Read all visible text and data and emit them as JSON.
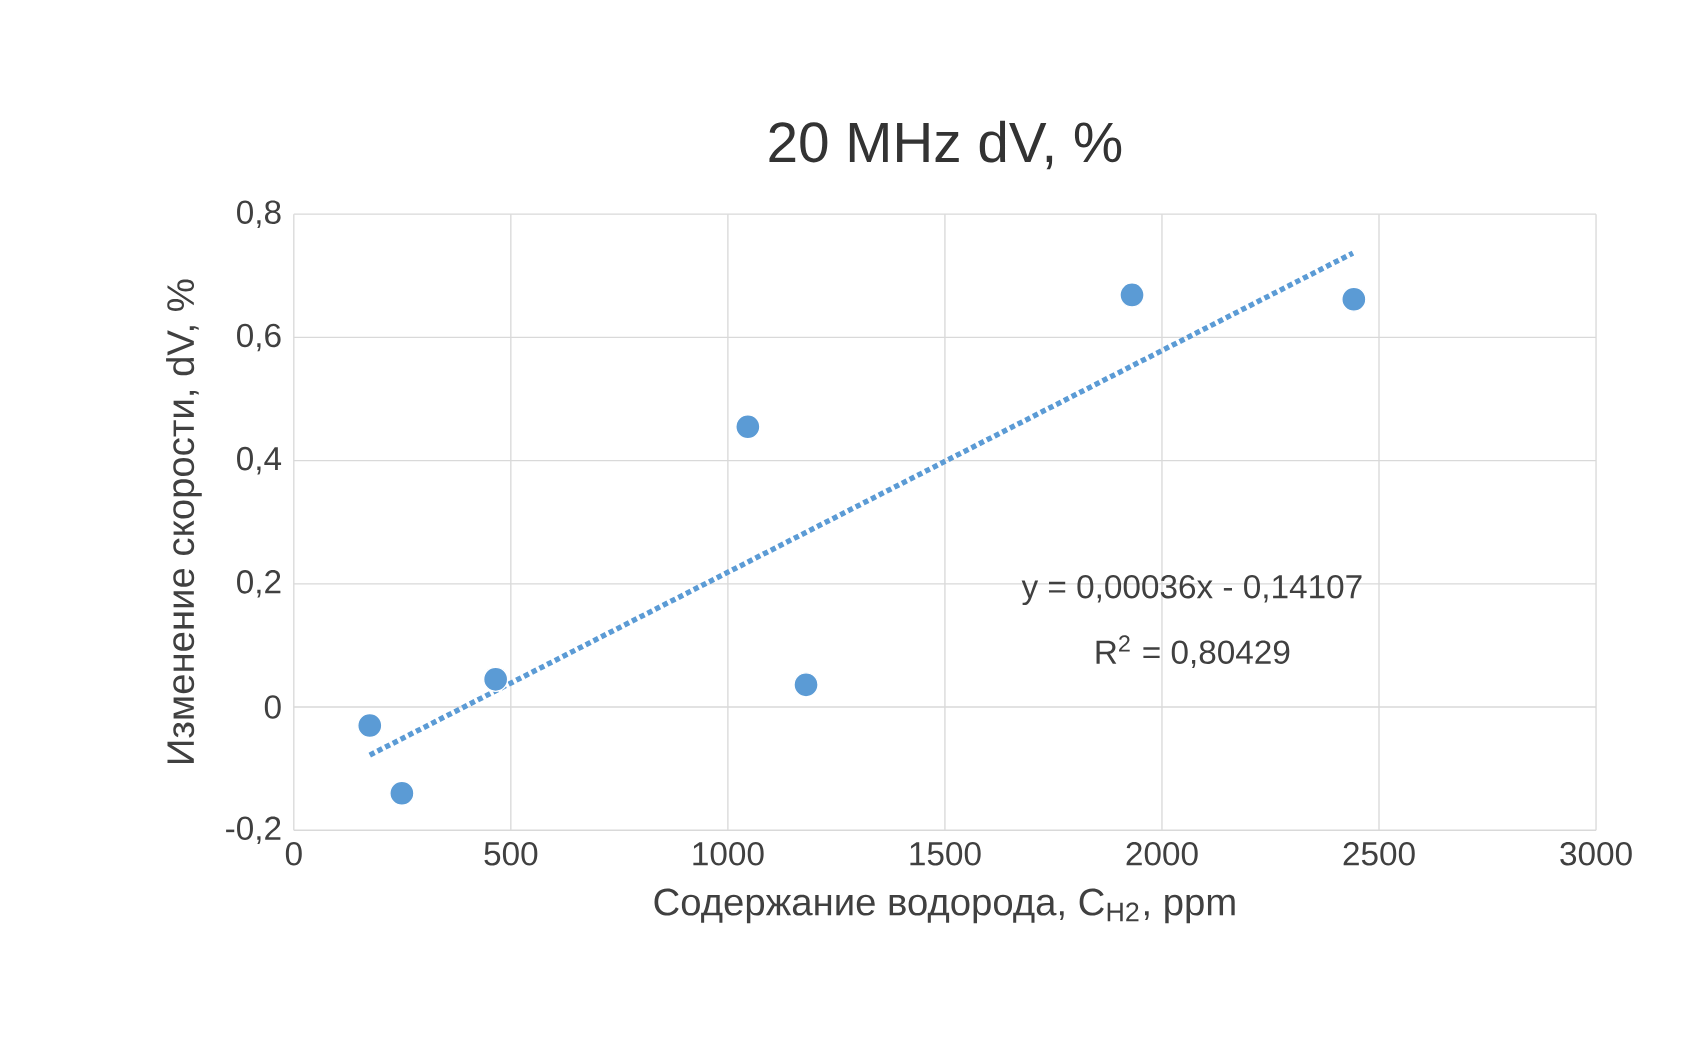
{
  "chart_data": {
    "type": "scatter",
    "title": "20 MHz dV, %",
    "xlabel": "Содержание водорода, C$_{H2}$, ppm",
    "ylabel": "Изменение скорости, dV, %",
    "series": [
      {
        "type": "scatter",
        "color": "#5b9bd5",
        "marker": "circle",
        "x": [
          175,
          249,
          465,
          1046,
          1180,
          1931,
          2442
        ],
        "values": [
          -0.03,
          -0.14,
          0.045,
          0.455,
          0.036,
          0.669,
          0.662
        ]
      },
      {
        "type": "line",
        "color": "#5b9bd5",
        "line_style": "dotted",
        "marker": "none",
        "x": [
          175,
          2440
        ],
        "values": [
          -0.078,
          0.737
        ]
      }
    ],
    "annotations": [
      "y = 0,00036x - 0,14107",
      "R$^{2}$ = 0,80429"
    ],
    "xlim": [
      0,
      3000
    ],
    "ylim": [
      -0.2,
      0.8
    ],
    "xticks": [
      0,
      500,
      1000,
      1500,
      2000,
      2500,
      3000
    ],
    "yticks": [
      {
        "value": -0.2,
        "label": "-0,2"
      },
      {
        "value": 0,
        "label": "0"
      },
      {
        "value": 0.2,
        "label": "0,2"
      },
      {
        "value": 0.4,
        "label": "0,4"
      },
      {
        "value": 0.6,
        "label": "0,6"
      },
      {
        "value": 0.8,
        "label": "0,8"
      }
    ],
    "grid": true
  }
}
